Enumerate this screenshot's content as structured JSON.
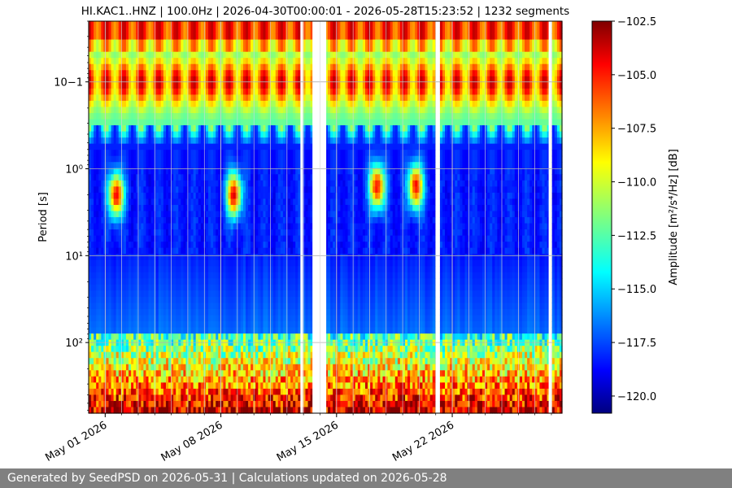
{
  "chart_data": {
    "type": "heatmap",
    "title": "HI.KAC1..HNZ | 100.0Hz | 2026-04-30T00:00:01 - 2026-05-28T15:23:52 | 1232 segments",
    "xlabel": "",
    "ylabel": "Period [s]",
    "x_axis": {
      "type": "date",
      "range": [
        "2026-04-30T00:00:01",
        "2026-05-28T15:23:52"
      ],
      "ticks": [
        "2026-05-01",
        "2026-05-08",
        "2026-05-15",
        "2026-05-22"
      ],
      "tick_labels": [
        "May 01 2026",
        "May 08 2026",
        "May 15 2026",
        "May 22 2026"
      ]
    },
    "y_axis": {
      "scale": "log",
      "inverted": true,
      "range": [
        0.02,
        650
      ],
      "ticks": [
        0.1,
        1,
        10,
        100
      ],
      "tick_labels": [
        "10−1",
        "10⁰",
        "10¹",
        "10²"
      ]
    },
    "colorbar": {
      "label": "Amplitude [m²/s⁴/Hz] [dB]",
      "colormap": "jet",
      "range": [
        -120.8,
        -102.5
      ],
      "ticks": [
        -102.5,
        -105.0,
        -107.5,
        -110.0,
        -112.5,
        -115.0,
        -117.5,
        -120.0
      ],
      "tick_labels": [
        "−102.5",
        "−105.0",
        "−107.5",
        "−110.0",
        "−112.5",
        "−115.0",
        "−117.5",
        "−120.0"
      ]
    },
    "data_gaps": [
      {
        "start": "2026-05-12T19:30:00",
        "end": "2026-05-12T23:00:00"
      },
      {
        "start": "2026-05-13T13:00:00",
        "end": "2026-05-14T09:00:00"
      },
      {
        "start": "2026-05-21T00:30:00",
        "end": "2026-05-21T04:30:00"
      },
      {
        "start": "2026-05-27T20:00:00",
        "end": "2026-05-28T00:30:00"
      }
    ],
    "features": {
      "microseism_band_period_s": [
        0.1,
        0.35
      ],
      "microseism_diurnal_cycles": 27,
      "high_amplitude_blobs": [
        {
          "center": "2026-05-01T16:00:00",
          "period_s": 2.0
        },
        {
          "center": "2026-05-08T19:00:00",
          "period_s": 2.0
        },
        {
          "center": "2026-05-17T11:00:00",
          "period_s": 1.6
        },
        {
          "center": "2026-05-19T19:00:00",
          "period_s": 1.6
        }
      ]
    },
    "grid": true
  },
  "footer": {
    "text": "Generated by SeedPSD on 2026-05-31 | Calculations updated on 2026-05-28"
  }
}
